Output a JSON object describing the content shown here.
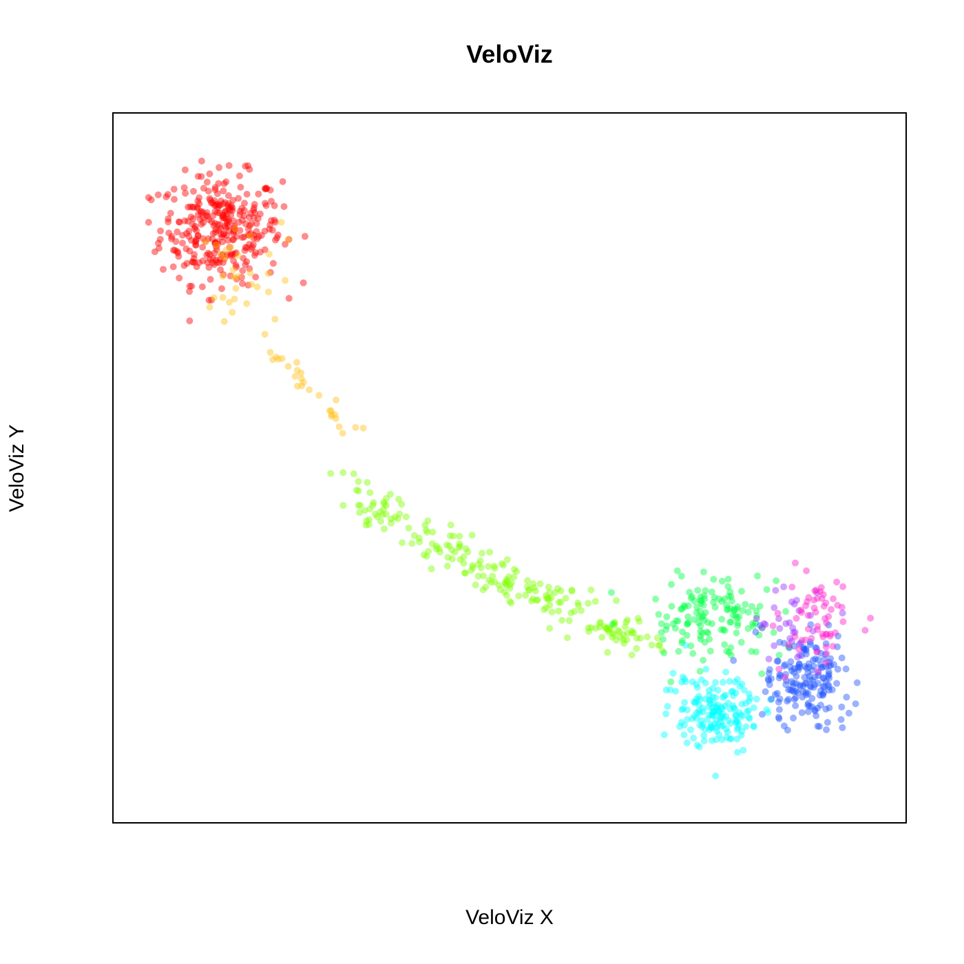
{
  "chart_data": {
    "type": "scatter",
    "title": "VeloViz",
    "xlabel": "VeloViz X",
    "ylabel": "VeloViz Y",
    "xlim": [
      0,
      100
    ],
    "ylim": [
      0,
      100
    ],
    "grid": false,
    "axis_ticks": false,
    "point_opacity": 0.45,
    "series": [
      {
        "color": "#FF0000",
        "center": [
          10,
          87
        ],
        "spread": [
          4.2,
          4.2
        ],
        "n": 320
      },
      {
        "color": "#FFC21A",
        "center": [
          12,
          79
        ],
        "spread": [
          4.5,
          5.0
        ],
        "n": 60
      },
      {
        "color": "#7FFF00",
        "center": [
          50,
          34
        ],
        "spread": [
          12.0,
          5.0
        ],
        "n": 220
      },
      {
        "color": "#00FF44",
        "center": [
          78,
          27
        ],
        "spread": [
          5.0,
          3.0
        ],
        "n": 140
      },
      {
        "color": "#00FFFF",
        "center": [
          79,
          12
        ],
        "spread": [
          3.0,
          3.0
        ],
        "n": 170
      },
      {
        "color": "#2255FF",
        "center": [
          91,
          17
        ],
        "spread": [
          3.0,
          3.5
        ],
        "n": 170
      },
      {
        "color": "#9933FF",
        "center": [
          88,
          25
        ],
        "spread": [
          2.5,
          3.5
        ],
        "n": 30
      },
      {
        "color": "#FF22CC",
        "center": [
          93,
          27
        ],
        "spread": [
          2.5,
          4.0
        ],
        "n": 60
      }
    ]
  }
}
